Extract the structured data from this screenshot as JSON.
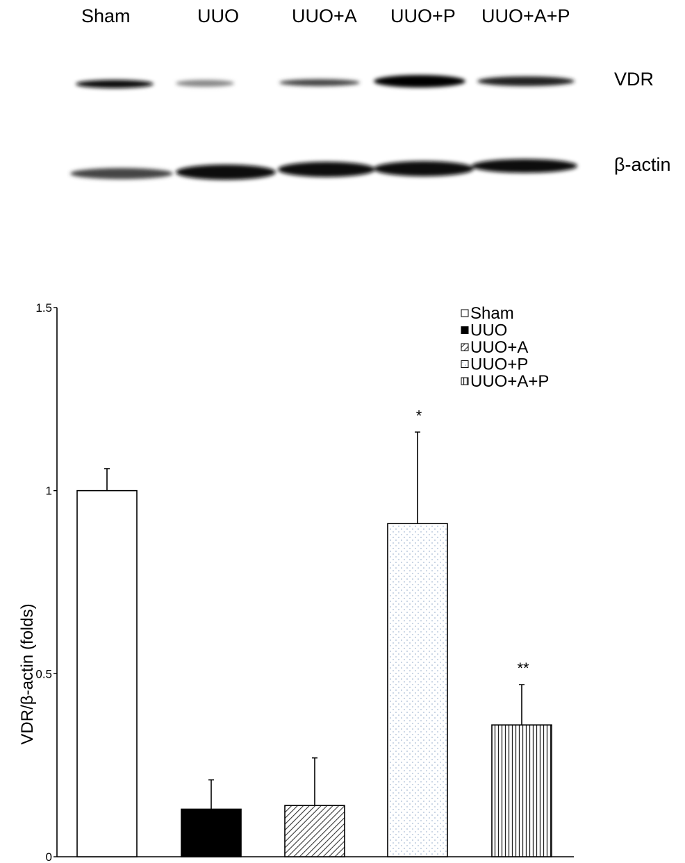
{
  "blot": {
    "lanes": [
      "Sham",
      "UUO",
      "UUO+A",
      "UUO+P",
      "UUO+A+P"
    ],
    "bands": [
      "VDR",
      "β-actin"
    ]
  },
  "chart_data": {
    "type": "bar",
    "title": "",
    "xlabel": "",
    "ylabel": "VDR/β-actin (folds)",
    "ylim": [
      0,
      1.5
    ],
    "yticks": [
      0,
      0.5,
      1,
      1.5
    ],
    "ytick_labels": [
      "0",
      "0.5",
      "1",
      "1.5"
    ],
    "categories": [
      "Sham",
      "UUO",
      "UUO+A",
      "UUO+P",
      "UUO+A+P"
    ],
    "values": [
      1.0,
      0.13,
      0.14,
      0.91,
      0.36
    ],
    "errors": [
      0.06,
      0.08,
      0.13,
      0.25,
      0.11
    ],
    "annotations": [
      "",
      "",
      "",
      "*",
      "**"
    ],
    "legend": [
      "Sham",
      "UUO",
      "UUO+A",
      "UUO+P",
      "UUO+A+P"
    ],
    "legend_position": "top-right",
    "fills": [
      "white",
      "black",
      "diagonal-hatch",
      "light-dots",
      "vertical-lines"
    ],
    "grid": false
  }
}
